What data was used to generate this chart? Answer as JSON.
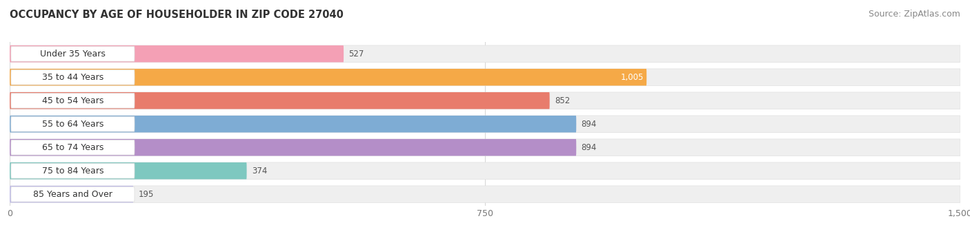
{
  "title": "OCCUPANCY BY AGE OF HOUSEHOLDER IN ZIP CODE 27040",
  "source": "Source: ZipAtlas.com",
  "categories": [
    "Under 35 Years",
    "35 to 44 Years",
    "45 to 54 Years",
    "55 to 64 Years",
    "65 to 74 Years",
    "75 to 84 Years",
    "85 Years and Over"
  ],
  "values": [
    527,
    1005,
    852,
    894,
    894,
    374,
    195
  ],
  "bar_colors": [
    "#f4a0b5",
    "#f5a947",
    "#e87c6c",
    "#7eacd4",
    "#b48ec8",
    "#7ec8c0",
    "#c0bce8"
  ],
  "bar_bg_color": "#efefef",
  "label_bg_color": "#ffffff",
  "xlim_max": 1500,
  "xticks": [
    0,
    750,
    1500
  ],
  "xtick_labels": [
    "0",
    "750",
    "1,500"
  ],
  "title_fontsize": 10.5,
  "source_fontsize": 9,
  "bar_label_fontsize": 9,
  "value_fontsize": 8.5,
  "tick_fontsize": 9,
  "bar_height": 0.72,
  "bg_color": "#ffffff",
  "grid_color": "#d8d8d8",
  "label_text_color": "#333333",
  "value_color_outside": "#555555",
  "value_color_inside": "#ffffff",
  "inside_value_indices": [
    1
  ]
}
